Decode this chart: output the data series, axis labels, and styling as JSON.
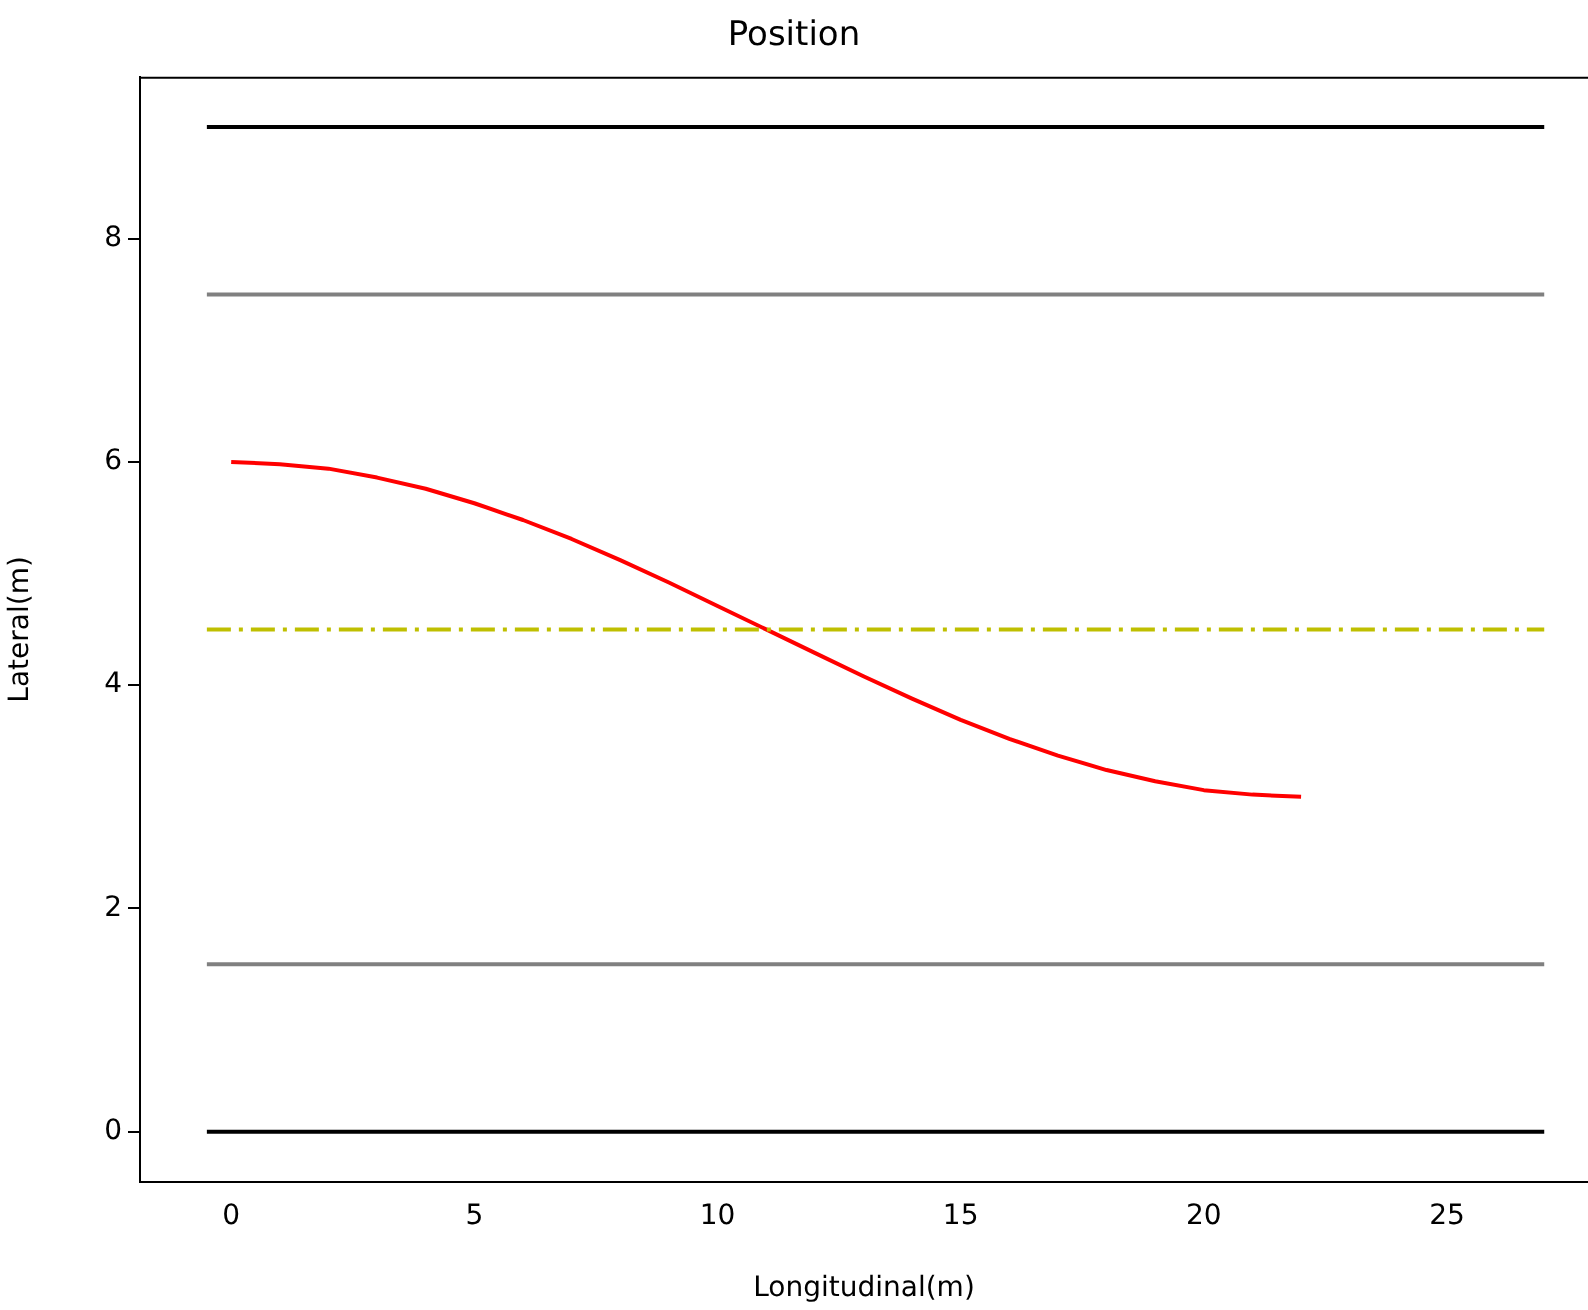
{
  "chart_data": {
    "type": "line",
    "title": "Position",
    "xlabel": "Longitudinal(m)",
    "ylabel": "Lateral(m)",
    "xlim": [
      -1.875,
      27.9
    ],
    "ylim": [
      -0.45,
      9.45
    ],
    "xticks": [
      0,
      5,
      10,
      15,
      20,
      25
    ],
    "yticks": [
      0,
      2,
      4,
      6,
      8
    ],
    "grid": false,
    "legend": false,
    "marker": "none",
    "series": [
      {
        "color": "#000000",
        "x": [
          -0.5,
          27
        ],
        "values": [
          0,
          0
        ]
      },
      {
        "color": "#808080",
        "x": [
          -0.5,
          27
        ],
        "values": [
          1.5,
          1.5
        ]
      },
      {
        "color": "#bfbf00",
        "x": [
          -0.5,
          27
        ],
        "values": [
          4.5,
          4.5
        ],
        "line_style": "dashed"
      },
      {
        "color": "#808080",
        "x": [
          -0.5,
          27
        ],
        "values": [
          7.5,
          7.5
        ]
      },
      {
        "color": "#000000",
        "x": [
          -0.5,
          27
        ],
        "values": [
          9,
          9
        ]
      },
      {
        "color": "#ff0000",
        "x": [
          0,
          1,
          2,
          3,
          4,
          5,
          6,
          7,
          8,
          9,
          10,
          11,
          12,
          13,
          14,
          15,
          16,
          17,
          18,
          19,
          20,
          21,
          22
        ],
        "values": [
          6.0,
          5.98,
          5.94,
          5.86,
          5.76,
          5.63,
          5.48,
          5.31,
          5.12,
          4.92,
          4.71,
          4.5,
          4.29,
          4.08,
          3.88,
          3.69,
          3.52,
          3.37,
          3.24,
          3.14,
          3.06,
          3.02,
          3.0
        ]
      }
    ]
  }
}
